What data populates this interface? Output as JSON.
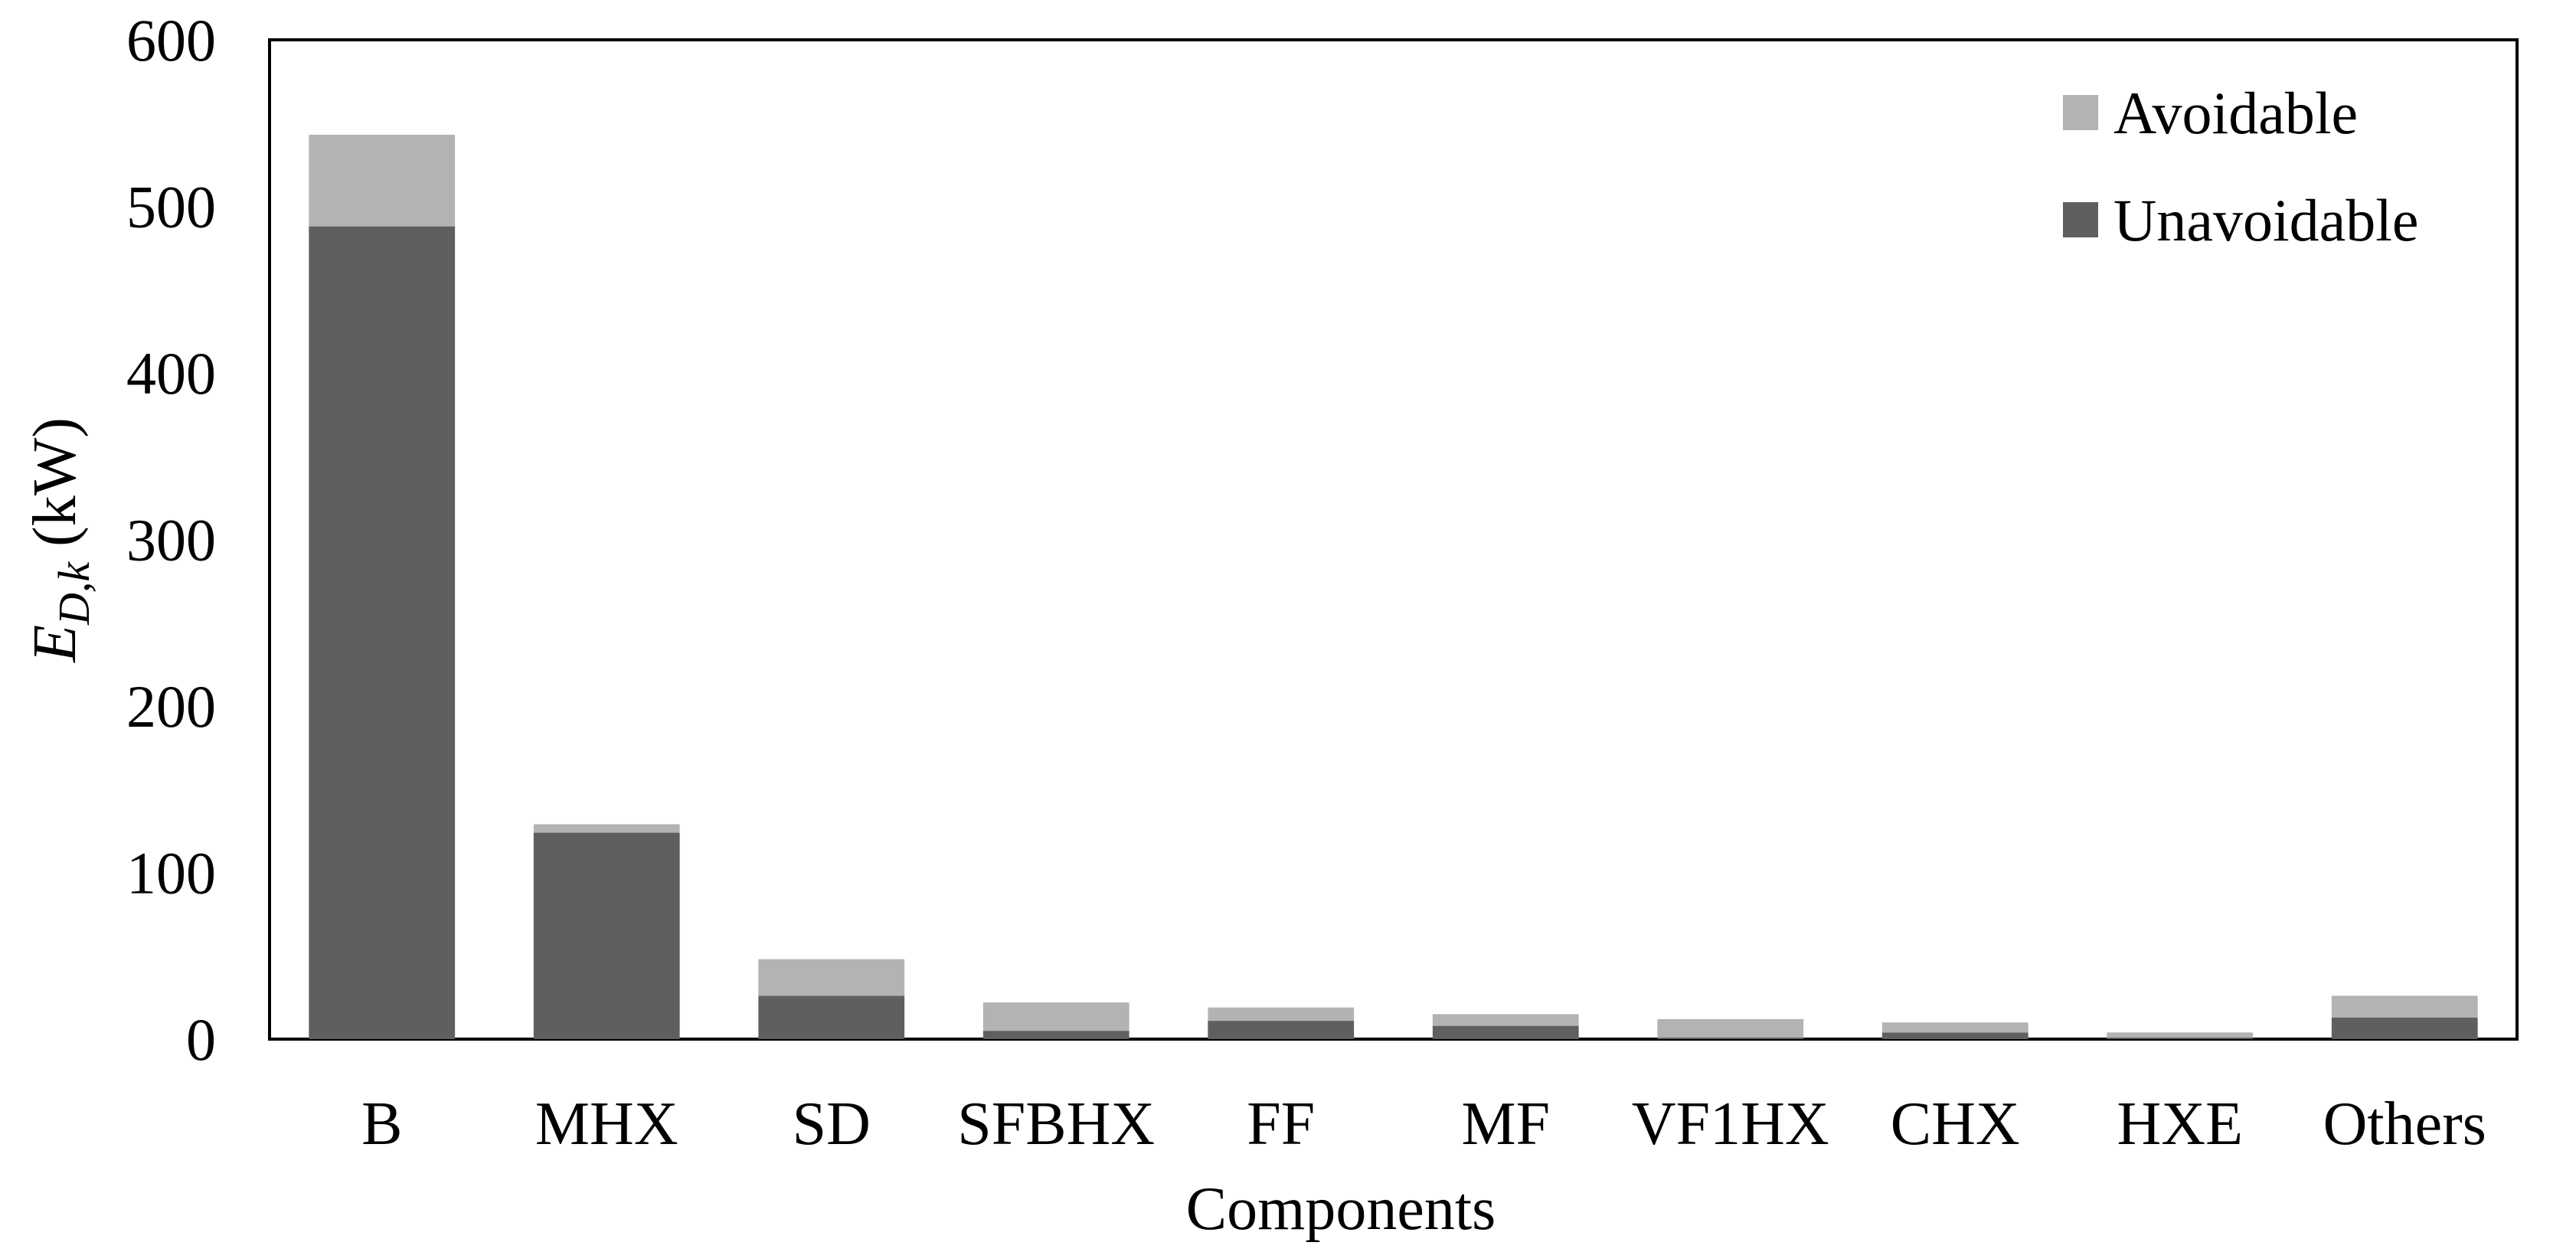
{
  "chart_data": {
    "type": "bar",
    "stacked": true,
    "title": "",
    "xlabel": "Components",
    "ylabel": {
      "symbol": "E",
      "subscript": "D,k",
      "unit": " (kW)"
    },
    "ylim": [
      0,
      600
    ],
    "yticks": [
      0,
      100,
      200,
      300,
      400,
      500,
      600
    ],
    "grid": false,
    "legend_position": "top-right",
    "categories": [
      "B",
      "MHX",
      "SD",
      "SFBHX",
      "FF",
      "MF",
      "VF1HX",
      "CHX",
      "HXE",
      "Others"
    ],
    "series": [
      {
        "name": "Unavoidable",
        "color": "#5f5f5f",
        "values": [
          488,
          124,
          26,
          5,
          11,
          8,
          1,
          4,
          1,
          13
        ]
      },
      {
        "name": "Avoidable",
        "color": "#b3b3b3",
        "values": [
          55,
          5,
          22,
          17,
          8,
          7,
          11,
          6,
          3,
          13
        ]
      }
    ],
    "legend_order": [
      "Avoidable",
      "Unavoidable"
    ]
  }
}
